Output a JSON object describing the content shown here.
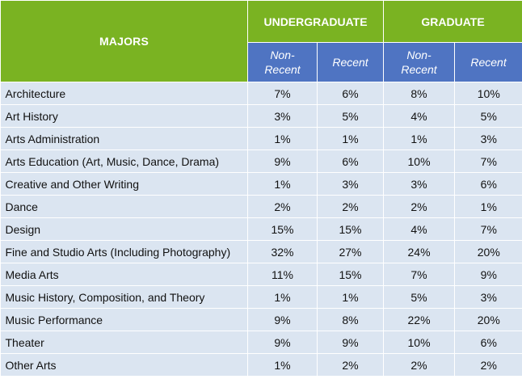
{
  "headers": {
    "majors": "MAJORS",
    "undergraduate": "UNDERGRADUATE",
    "graduate": "GRADUATE",
    "non_recent": "Non-\nRecent",
    "recent": "Recent"
  },
  "rows": [
    {
      "major": "Architecture",
      "ug_non_recent": "7%",
      "ug_recent": "6%",
      "grad_non_recent": "8%",
      "grad_recent": "10%"
    },
    {
      "major": "Art History",
      "ug_non_recent": "3%",
      "ug_recent": "5%",
      "grad_non_recent": "4%",
      "grad_recent": "5%"
    },
    {
      "major": "Arts Administration",
      "ug_non_recent": "1%",
      "ug_recent": "1%",
      "grad_non_recent": "1%",
      "grad_recent": "3%"
    },
    {
      "major": "Arts Education (Art, Music, Dance, Drama)",
      "ug_non_recent": "9%",
      "ug_recent": "6%",
      "grad_non_recent": "10%",
      "grad_recent": "7%"
    },
    {
      "major": "Creative and Other Writing",
      "ug_non_recent": "1%",
      "ug_recent": "3%",
      "grad_non_recent": "3%",
      "grad_recent": "6%"
    },
    {
      "major": "Dance",
      "ug_non_recent": "2%",
      "ug_recent": "2%",
      "grad_non_recent": "2%",
      "grad_recent": "1%"
    },
    {
      "major": "Design",
      "ug_non_recent": "15%",
      "ug_recent": "15%",
      "grad_non_recent": "4%",
      "grad_recent": "7%"
    },
    {
      "major": "Fine and Studio Arts (Including Photography)",
      "ug_non_recent": "32%",
      "ug_recent": "27%",
      "grad_non_recent": "24%",
      "grad_recent": "20%"
    },
    {
      "major": "Media Arts",
      "ug_non_recent": "11%",
      "ug_recent": "15%",
      "grad_non_recent": "7%",
      "grad_recent": "9%"
    },
    {
      "major": "Music History, Composition, and Theory",
      "ug_non_recent": "1%",
      "ug_recent": "1%",
      "grad_non_recent": "5%",
      "grad_recent": "3%"
    },
    {
      "major": "Music Performance",
      "ug_non_recent": "9%",
      "ug_recent": "8%",
      "grad_non_recent": "22%",
      "grad_recent": "20%"
    },
    {
      "major": "Theater",
      "ug_non_recent": "9%",
      "ug_recent": "9%",
      "grad_non_recent": "10%",
      "grad_recent": "6%"
    },
    {
      "major": "Other Arts",
      "ug_non_recent": "1%",
      "ug_recent": "2%",
      "grad_non_recent": "2%",
      "grad_recent": "2%"
    }
  ],
  "colors": {
    "header_green": "#7ab322",
    "subheader_blue": "#4f74c2",
    "body_light_blue": "#dbe5f1"
  }
}
